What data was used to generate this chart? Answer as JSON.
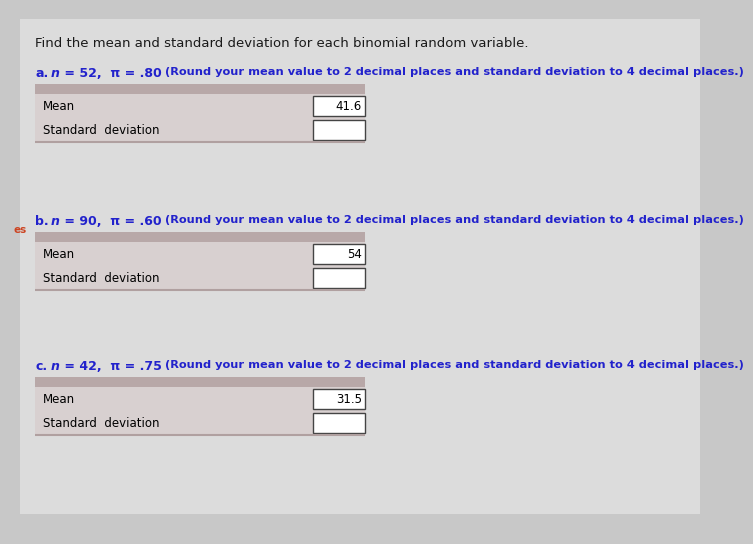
{
  "bg_color": "#c8c8c8",
  "white_area": "#e8e8e8",
  "title_text": "Find the mean and standard deviation for each binomial random variable.",
  "parts": [
    {
      "label": "a.",
      "n_val": "n",
      "params": " = 52,  π = .80 ",
      "round_text": "(Round your mean value to 2 decimal places and standard deviation to 4 decimal places.)",
      "mean_val": "41.6"
    },
    {
      "label": "b.",
      "n_val": "n",
      "params": " = 90,  π = .60 ",
      "round_text": "(Round your mean value to 2 decimal places and standard deviation to 4 decimal places.)",
      "mean_val": "54"
    },
    {
      "label": "c.",
      "n_val": "n",
      "params": " = 42,  π = .75 ",
      "round_text": "(Round your mean value to 2 decimal places and standard deviation to 4 decimal places.)",
      "mean_val": "31.5"
    }
  ],
  "header_color": "#b8a8a8",
  "row_bg": "#d8d0d0",
  "bottom_line_color": "#b0a0a0",
  "label_color": "#000000",
  "bold_color": "#2222cc",
  "normal_text_color": "#1a1a1a",
  "es_color": "#cc4422",
  "title_fontsize": 9.5,
  "label_fontsize": 8.5,
  "param_fontsize": 9.0,
  "round_fontsize": 8.2,
  "value_fontsize": 8.5
}
